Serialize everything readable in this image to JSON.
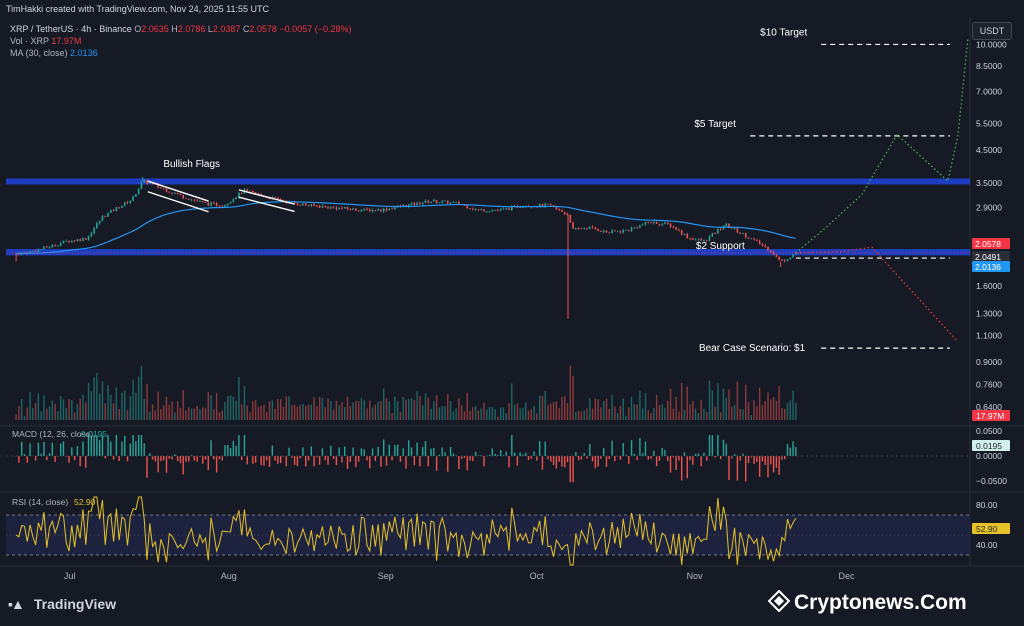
{
  "header": {
    "credit": "TimHakki created with TradingView.com, Nov 24, 2025 11:55 UTC",
    "symbol": "XRP / TetherUS · 4h · Binance",
    "ohlc": [
      {
        "k": "O",
        "v": "2.0635"
      },
      {
        "k": "H",
        "v": "2.0786"
      },
      {
        "k": "L",
        "v": "2.0387"
      },
      {
        "k": "C",
        "v": "2.0578"
      },
      {
        "k": "",
        "v": "−0.0057 (−0.28%)"
      }
    ],
    "vol_label": "Vol · XRP",
    "vol_value": "17.97M",
    "ma_label": "MA (30, close)",
    "ma_value": "2.0136",
    "currency_button": "USDT"
  },
  "colors": {
    "background": "#161a25",
    "zone": "#1e40c8",
    "up": "#26a69a",
    "down": "#ef5350",
    "ma": "#2196f3",
    "rsi": "#e6c229",
    "target_path": "#4caf50",
    "bear_path": "#e53935"
  },
  "chart_data": [
    {
      "type": "candlestick",
      "title": "XRP / TetherUS · 4h · Binance",
      "scale": "log",
      "ylim": [
        0.58,
        11.5
      ],
      "y_ticks": [
        "10.0000",
        "8.5000",
        "7.0000",
        "5.5000",
        "4.5000",
        "3.5000",
        "2.9000",
        "1.6000",
        "1.3000",
        "1.1000",
        "0.9000",
        "0.7600",
        "0.6400"
      ],
      "x_labels": [
        "Jul",
        "Aug",
        "Sep",
        "Oct",
        "Nov",
        "Dec"
      ],
      "price_series": [
        [
          "2025-06-23",
          2.05
        ],
        [
          "2025-06-26",
          2.08
        ],
        [
          "2025-06-30",
          2.17
        ],
        [
          "2025-07-03",
          2.25
        ],
        [
          "2025-07-07",
          2.3
        ],
        [
          "2025-07-10",
          2.7
        ],
        [
          "2025-07-13",
          2.9
        ],
        [
          "2025-07-16",
          3.1
        ],
        [
          "2025-07-18",
          3.55
        ],
        [
          "2025-07-20",
          3.45
        ],
        [
          "2025-07-23",
          3.3
        ],
        [
          "2025-07-26",
          3.15
        ],
        [
          "2025-07-30",
          3.0
        ],
        [
          "2025-08-03",
          2.95
        ],
        [
          "2025-08-07",
          3.3
        ],
        [
          "2025-08-10",
          3.2
        ],
        [
          "2025-08-13",
          3.1
        ],
        [
          "2025-08-17",
          3.0
        ],
        [
          "2025-08-20",
          2.95
        ],
        [
          "2025-08-25",
          2.9
        ],
        [
          "2025-08-30",
          2.85
        ],
        [
          "2025-09-03",
          2.85
        ],
        [
          "2025-09-08",
          2.95
        ],
        [
          "2025-09-13",
          3.05
        ],
        [
          "2025-09-18",
          3.0
        ],
        [
          "2025-09-22",
          2.85
        ],
        [
          "2025-09-27",
          2.85
        ],
        [
          "2025-10-01",
          2.95
        ],
        [
          "2025-10-06",
          2.95
        ],
        [
          "2025-10-10",
          2.75
        ],
        [
          "2025-10-11",
          2.45
        ],
        [
          "2025-10-14",
          2.5
        ],
        [
          "2025-10-18",
          2.4
        ],
        [
          "2025-10-22",
          2.45
        ],
        [
          "2025-10-26",
          2.6
        ],
        [
          "2025-10-30",
          2.55
        ],
        [
          "2025-11-03",
          2.3
        ],
        [
          "2025-11-06",
          2.25
        ],
        [
          "2025-11-10",
          2.55
        ],
        [
          "2025-11-13",
          2.4
        ],
        [
          "2025-11-16",
          2.25
        ],
        [
          "2025-11-19",
          2.1
        ],
        [
          "2025-11-21",
          1.92
        ],
        [
          "2025-11-24",
          2.0578
        ]
      ],
      "wick_lows": [
        [
          "2025-06-23",
          1.93
        ],
        [
          "2025-10-10",
          1.25
        ],
        [
          "2025-11-21",
          1.85
        ]
      ],
      "wick_highs": [
        [
          "2025-07-18",
          3.66
        ]
      ],
      "moving_average": {
        "name": "MA (30, close)",
        "last": 2.0136
      },
      "zones": [
        {
          "low": 3.48,
          "high": 3.62
        },
        {
          "low": 2.02,
          "high": 2.12
        }
      ],
      "levels": [
        {
          "label": "$10 Target",
          "price": 10.0,
          "from_date": "2025-11-29",
          "to_date": "2025-12-26"
        },
        {
          "label": "$5 Target",
          "price": 5.0,
          "from_date": "2025-11-15",
          "to_date": "2025-12-26"
        },
        {
          "label": "$2 Support",
          "price": 1.98,
          "from_date": "2025-11-24",
          "to_date": "2025-12-26"
        },
        {
          "label": "Bear Case Scenario: $1",
          "price": 1.0,
          "from_date": "2025-11-29",
          "to_date": "2025-12-26"
        }
      ],
      "annotations": [
        {
          "label": "Bullish Flags",
          "date": "2025-07-28",
          "price": 3.95
        }
      ],
      "flag_channels": [
        {
          "from": [
            "2025-07-19",
            3.55
          ],
          "to": [
            "2025-07-31",
            3.05
          ],
          "offset": 0.26
        },
        {
          "from": [
            "2025-08-06",
            3.32
          ],
          "to": [
            "2025-08-17",
            2.98
          ],
          "offset": 0.18
        }
      ],
      "projection_bull": [
        [
          "2025-11-24",
          2.06
        ],
        [
          "2025-11-30",
          2.5
        ],
        [
          "2025-12-07",
          3.2
        ],
        [
          "2025-12-14",
          5.05
        ],
        [
          "2025-12-24",
          3.55
        ],
        [
          "2025-12-26",
          5.0
        ],
        [
          "2025-12-28",
          10.5
        ]
      ],
      "projection_bear": [
        [
          "2025-11-24",
          2.06
        ],
        [
          "2025-12-03",
          2.08
        ],
        [
          "2025-12-09",
          2.15
        ],
        [
          "2025-12-26",
          1.05
        ]
      ],
      "price_labels": [
        {
          "value": "2.0578",
          "color": "#f23645"
        },
        {
          "value": "2.0491",
          "color": "#2a2e39"
        },
        {
          "value": "2.0136",
          "color": "#2196f3"
        }
      ],
      "dotted_price": 2.0578
    },
    {
      "type": "bar",
      "title": "Vol · XRP",
      "last": "17.97M"
    },
    {
      "type": "histogram",
      "title": "MACD (12, 26, close)",
      "last": "0.0195",
      "y_ticks": [
        "0.0500",
        "0.0000",
        "−0.0500"
      ],
      "ylim": [
        -0.08,
        0.065
      ],
      "series_hint": "oscillates around zero; negative spike mid-July; positive spikes early Oct and late Nov"
    },
    {
      "type": "line",
      "title": "RSI (14, close)",
      "last": "52.90",
      "y_ticks": [
        "80.00",
        "40.00"
      ],
      "ylim": [
        20,
        90
      ],
      "band": [
        30,
        70
      ],
      "mid": 50
    }
  ],
  "watermark": {
    "tradingview": "TradingView",
    "cryptonews": "Cryptonews.Com"
  }
}
